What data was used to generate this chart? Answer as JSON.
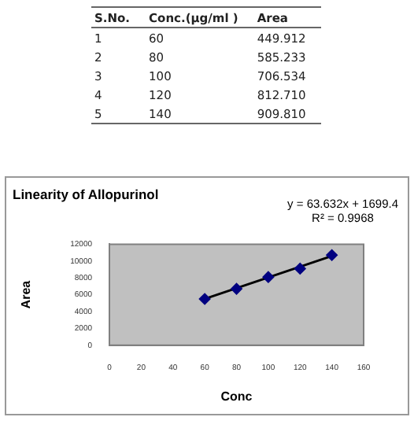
{
  "chart_data": {
    "type": "scatter",
    "title": "Linearity of Allopurinol",
    "xlabel": "Conc",
    "ylabel": "Area",
    "x": [
      60,
      80,
      100,
      120,
      140
    ],
    "series": [
      {
        "type": "scatter",
        "color": "#000080",
        "values": [
          5500,
          6700,
          8100,
          9100,
          10700
        ],
        "marker": "diamond"
      },
      {
        "type": "line",
        "color": "#000000",
        "x": [
          60,
          140
        ],
        "values": [
          5500,
          10600
        ],
        "marker": "none"
      }
    ],
    "xlim": [
      0,
      160
    ],
    "xticks": [
      0,
      20,
      40,
      60,
      80,
      100,
      120,
      140,
      160
    ],
    "ylim": [
      0,
      12000
    ],
    "yticks": [
      0,
      2000,
      4000,
      6000,
      8000,
      10000,
      12000
    ],
    "grid": false,
    "legend": false,
    "annotations": [
      "y = 63.632x + 1699.4",
      "R² = 0.9968",
      "S.No.",
      "Conc.(µg/ml )",
      "Area",
      "1",
      "60",
      "449.912",
      "2",
      "80",
      "585.233",
      "3",
      "100",
      "706.534",
      "4",
      "120",
      "812.710",
      "5",
      "140",
      "909.810"
    ]
  }
}
